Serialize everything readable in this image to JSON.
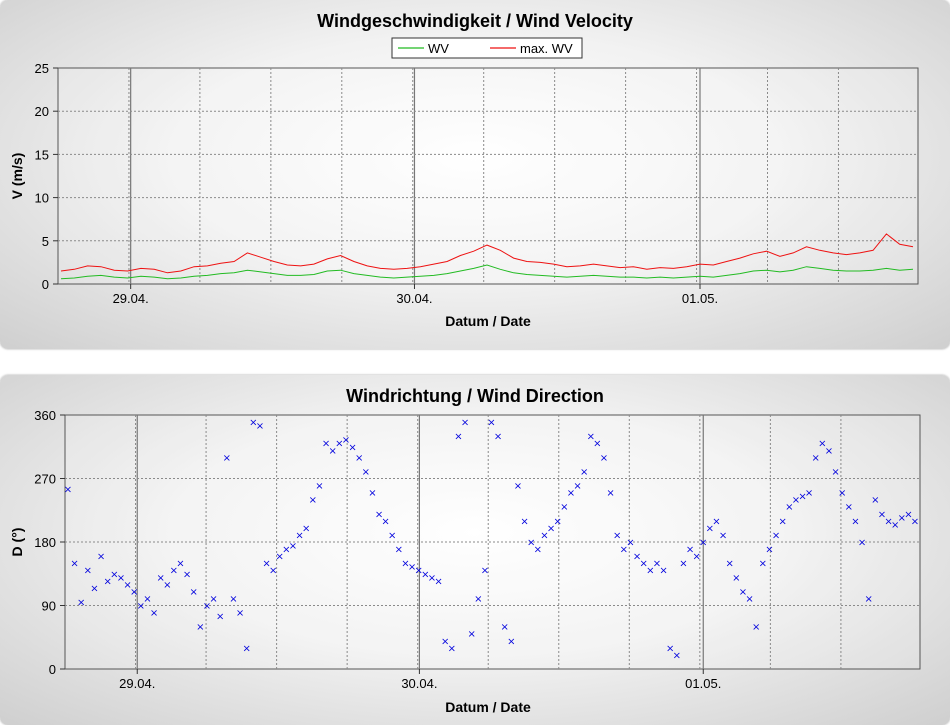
{
  "colors": {
    "wv": "#22bb22",
    "max_wv": "#ee1111",
    "direction": "#0000dd",
    "grid_minor": "#808080",
    "grid_major": "#808080"
  },
  "chart_data": [
    {
      "type": "line",
      "title": "Windgeschwindigkeit / Wind Velocity",
      "xlabel": "Datum / Date",
      "ylabel": "V (m/s)",
      "ylim": [
        0,
        25
      ],
      "yticks": [
        "0",
        "5",
        "10",
        "15",
        "20",
        "25"
      ],
      "x_tick_labels": [
        "29.04.",
        "30.04.",
        "01.05."
      ],
      "grid": true,
      "legend": "top-center",
      "series": [
        {
          "name": "WV",
          "color": "#22bb22",
          "points": [
            [
              0,
              0.6
            ],
            [
              1,
              0.7
            ],
            [
              2,
              0.9
            ],
            [
              3,
              1.0
            ],
            [
              4,
              0.8
            ],
            [
              5,
              0.7
            ],
            [
              6,
              0.9
            ],
            [
              7,
              0.8
            ],
            [
              8,
              0.6
            ],
            [
              9,
              0.7
            ],
            [
              10,
              0.9
            ],
            [
              11,
              1.0
            ],
            [
              12,
              1.2
            ],
            [
              13,
              1.3
            ],
            [
              14,
              1.6
            ],
            [
              15,
              1.4
            ],
            [
              16,
              1.2
            ],
            [
              17,
              1.0
            ],
            [
              18,
              1.0
            ],
            [
              19,
              1.1
            ],
            [
              20,
              1.5
            ],
            [
              21,
              1.6
            ],
            [
              22,
              1.2
            ],
            [
              23,
              1.0
            ],
            [
              24,
              0.8
            ],
            [
              25,
              0.7
            ],
            [
              26,
              0.8
            ],
            [
              27,
              0.9
            ],
            [
              28,
              1.0
            ],
            [
              29,
              1.2
            ],
            [
              30,
              1.5
            ],
            [
              31,
              1.8
            ],
            [
              32,
              2.2
            ],
            [
              33,
              1.7
            ],
            [
              34,
              1.3
            ],
            [
              35,
              1.1
            ],
            [
              36,
              1.0
            ],
            [
              37,
              0.9
            ],
            [
              38,
              0.8
            ],
            [
              39,
              0.9
            ],
            [
              40,
              1.0
            ],
            [
              41,
              0.9
            ],
            [
              42,
              0.8
            ],
            [
              43,
              0.8
            ],
            [
              44,
              0.7
            ],
            [
              45,
              0.8
            ],
            [
              46,
              0.7
            ],
            [
              47,
              0.8
            ],
            [
              48,
              0.9
            ],
            [
              49,
              0.8
            ],
            [
              50,
              1.0
            ],
            [
              51,
              1.2
            ],
            [
              52,
              1.5
            ],
            [
              53,
              1.6
            ],
            [
              54,
              1.4
            ],
            [
              55,
              1.6
            ],
            [
              56,
              2.0
            ],
            [
              57,
              1.8
            ],
            [
              58,
              1.6
            ],
            [
              59,
              1.5
            ],
            [
              60,
              1.5
            ],
            [
              61,
              1.6
            ],
            [
              62,
              1.8
            ],
            [
              63,
              1.6
            ],
            [
              64,
              1.7
            ]
          ]
        },
        {
          "name": "max. WV",
          "color": "#ee1111",
          "points": [
            [
              0,
              1.5
            ],
            [
              1,
              1.7
            ],
            [
              2,
              2.1
            ],
            [
              3,
              2.0
            ],
            [
              4,
              1.6
            ],
            [
              5,
              1.5
            ],
            [
              6,
              1.8
            ],
            [
              7,
              1.7
            ],
            [
              8,
              1.3
            ],
            [
              9,
              1.5
            ],
            [
              10,
              2.0
            ],
            [
              11,
              2.1
            ],
            [
              12,
              2.4
            ],
            [
              13,
              2.6
            ],
            [
              14,
              3.6
            ],
            [
              15,
              3.1
            ],
            [
              16,
              2.6
            ],
            [
              17,
              2.2
            ],
            [
              18,
              2.1
            ],
            [
              19,
              2.3
            ],
            [
              20,
              2.9
            ],
            [
              21,
              3.3
            ],
            [
              22,
              2.6
            ],
            [
              23,
              2.1
            ],
            [
              24,
              1.8
            ],
            [
              25,
              1.7
            ],
            [
              26,
              1.8
            ],
            [
              27,
              2.0
            ],
            [
              28,
              2.3
            ],
            [
              29,
              2.6
            ],
            [
              30,
              3.3
            ],
            [
              31,
              3.8
            ],
            [
              32,
              4.5
            ],
            [
              33,
              3.9
            ],
            [
              34,
              3.0
            ],
            [
              35,
              2.6
            ],
            [
              36,
              2.5
            ],
            [
              37,
              2.3
            ],
            [
              38,
              2.0
            ],
            [
              39,
              2.1
            ],
            [
              40,
              2.3
            ],
            [
              41,
              2.1
            ],
            [
              42,
              1.9
            ],
            [
              43,
              2.0
            ],
            [
              44,
              1.7
            ],
            [
              45,
              1.9
            ],
            [
              46,
              1.8
            ],
            [
              47,
              2.0
            ],
            [
              48,
              2.3
            ],
            [
              49,
              2.2
            ],
            [
              50,
              2.6
            ],
            [
              51,
              3.0
            ],
            [
              52,
              3.5
            ],
            [
              53,
              3.8
            ],
            [
              54,
              3.2
            ],
            [
              55,
              3.6
            ],
            [
              56,
              4.3
            ],
            [
              57,
              3.9
            ],
            [
              58,
              3.6
            ],
            [
              59,
              3.4
            ],
            [
              60,
              3.6
            ],
            [
              61,
              3.9
            ],
            [
              62,
              5.8
            ],
            [
              63,
              4.6
            ],
            [
              64,
              4.3
            ]
          ]
        }
      ]
    },
    {
      "type": "scatter",
      "title": "Windrichtung / Wind Direction",
      "xlabel": "Datum / Date",
      "ylabel": "D (°)",
      "ylim": [
        0,
        360
      ],
      "yticks": [
        "0",
        "90",
        "180",
        "270",
        "360"
      ],
      "x_tick_labels": [
        "29.04.",
        "30.04.",
        "01.05."
      ],
      "grid": true,
      "series": [
        {
          "name": "",
          "color": "#0000dd",
          "points": [
            [
              0,
              255
            ],
            [
              0.5,
              150
            ],
            [
              1,
              95
            ],
            [
              1.5,
              140
            ],
            [
              2,
              115
            ],
            [
              2.5,
              160
            ],
            [
              3,
              125
            ],
            [
              3.5,
              135
            ],
            [
              4,
              130
            ],
            [
              4.5,
              120
            ],
            [
              5,
              110
            ],
            [
              5.5,
              90
            ],
            [
              6,
              100
            ],
            [
              6.5,
              80
            ],
            [
              7,
              130
            ],
            [
              7.5,
              120
            ],
            [
              8,
              140
            ],
            [
              8.5,
              150
            ],
            [
              9,
              135
            ],
            [
              9.5,
              110
            ],
            [
              10,
              60
            ],
            [
              10.5,
              90
            ],
            [
              11,
              100
            ],
            [
              11.5,
              75
            ],
            [
              12,
              300
            ],
            [
              12.5,
              100
            ],
            [
              13,
              80
            ],
            [
              13.5,
              30
            ],
            [
              14,
              350
            ],
            [
              14.5,
              345
            ],
            [
              15,
              150
            ],
            [
              15.5,
              140
            ],
            [
              16,
              160
            ],
            [
              16.5,
              170
            ],
            [
              17,
              175
            ],
            [
              17.5,
              190
            ],
            [
              18,
              200
            ],
            [
              18.5,
              240
            ],
            [
              19,
              260
            ],
            [
              19.5,
              320
            ],
            [
              20,
              310
            ],
            [
              20.5,
              320
            ],
            [
              21,
              325
            ],
            [
              21.5,
              315
            ],
            [
              22,
              300
            ],
            [
              22.5,
              280
            ],
            [
              23,
              250
            ],
            [
              23.5,
              220
            ],
            [
              24,
              210
            ],
            [
              24.5,
              190
            ],
            [
              25,
              170
            ],
            [
              25.5,
              150
            ],
            [
              26,
              145
            ],
            [
              26.5,
              140
            ],
            [
              27,
              135
            ],
            [
              27.5,
              130
            ],
            [
              28,
              125
            ],
            [
              28.5,
              40
            ],
            [
              29,
              30
            ],
            [
              29.5,
              330
            ],
            [
              30,
              350
            ],
            [
              30.5,
              50
            ],
            [
              31,
              100
            ],
            [
              31.5,
              140
            ],
            [
              32,
              350
            ],
            [
              32.5,
              330
            ],
            [
              33,
              60
            ],
            [
              33.5,
              40
            ],
            [
              34,
              260
            ],
            [
              34.5,
              210
            ],
            [
              35,
              180
            ],
            [
              35.5,
              170
            ],
            [
              36,
              190
            ],
            [
              36.5,
              200
            ],
            [
              37,
              210
            ],
            [
              37.5,
              230
            ],
            [
              38,
              250
            ],
            [
              38.5,
              260
            ],
            [
              39,
              280
            ],
            [
              39.5,
              330
            ],
            [
              40,
              320
            ],
            [
              40.5,
              300
            ],
            [
              41,
              250
            ],
            [
              41.5,
              190
            ],
            [
              42,
              170
            ],
            [
              42.5,
              180
            ],
            [
              43,
              160
            ],
            [
              43.5,
              150
            ],
            [
              44,
              140
            ],
            [
              44.5,
              150
            ],
            [
              45,
              140
            ],
            [
              45.5,
              30
            ],
            [
              46,
              20
            ],
            [
              46.5,
              150
            ],
            [
              47,
              170
            ],
            [
              47.5,
              160
            ],
            [
              48,
              180
            ],
            [
              48.5,
              200
            ],
            [
              49,
              210
            ],
            [
              49.5,
              190
            ],
            [
              50,
              150
            ],
            [
              50.5,
              130
            ],
            [
              51,
              110
            ],
            [
              51.5,
              100
            ],
            [
              52,
              60
            ],
            [
              52.5,
              150
            ],
            [
              53,
              170
            ],
            [
              53.5,
              190
            ],
            [
              54,
              210
            ],
            [
              54.5,
              230
            ],
            [
              55,
              240
            ],
            [
              55.5,
              245
            ],
            [
              56,
              250
            ],
            [
              56.5,
              300
            ],
            [
              57,
              320
            ],
            [
              57.5,
              310
            ],
            [
              58,
              280
            ],
            [
              58.5,
              250
            ],
            [
              59,
              230
            ],
            [
              59.5,
              210
            ],
            [
              60,
              180
            ],
            [
              60.5,
              100
            ],
            [
              61,
              240
            ],
            [
              61.5,
              220
            ],
            [
              62,
              210
            ],
            [
              62.5,
              205
            ],
            [
              63,
              215
            ],
            [
              63.5,
              220
            ],
            [
              64,
              210
            ]
          ]
        }
      ]
    }
  ]
}
